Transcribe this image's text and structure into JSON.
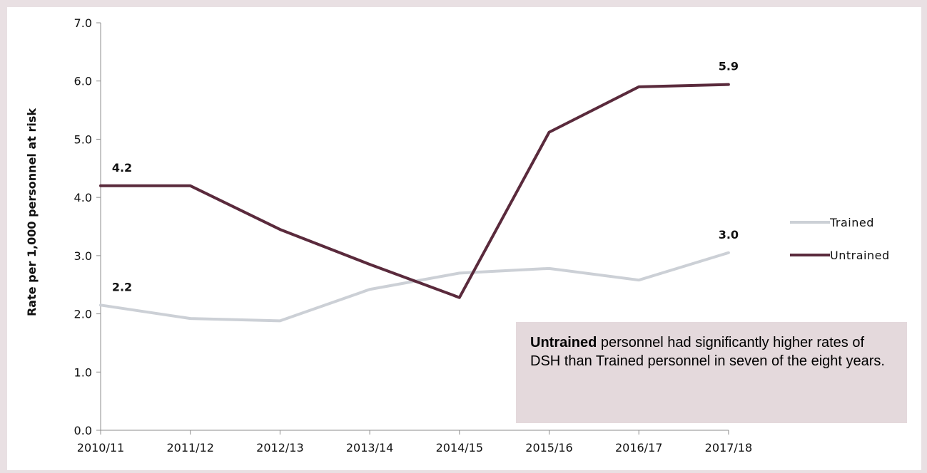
{
  "chart_data": {
    "type": "line",
    "ylabel": "Rate per 1,000 personnel at risk",
    "xlabel": "",
    "ylim": [
      0,
      7
    ],
    "yticks": [
      "0.0",
      "1.0",
      "2.0",
      "3.0",
      "4.0",
      "5.0",
      "6.0",
      "7.0"
    ],
    "categories": [
      "2010/11",
      "2011/12",
      "2012/13",
      "2013/14",
      "2014/15",
      "2015/16",
      "2016/17",
      "2017/18"
    ],
    "series": [
      {
        "name": "Trained",
        "color": "#ccd0d6",
        "values": [
          2.15,
          1.92,
          1.88,
          2.42,
          2.7,
          2.78,
          2.58,
          3.05
        ]
      },
      {
        "name": "Untrained",
        "color": "#5a2a3c",
        "values": [
          4.2,
          4.2,
          3.45,
          2.85,
          2.28,
          5.12,
          5.9,
          5.94
        ]
      }
    ],
    "data_labels": [
      {
        "series": 0,
        "index": 0,
        "text": "2.2"
      },
      {
        "series": 0,
        "index": 7,
        "text": "3.0"
      },
      {
        "series": 1,
        "index": 0,
        "text": "4.2"
      },
      {
        "series": 1,
        "index": 7,
        "text": "5.9"
      }
    ],
    "legend": "right",
    "grid": false
  },
  "callout": {
    "bold": "Untrained",
    "text": " personnel had significantly higher rates of DSH than Trained personnel in seven of the eight years."
  }
}
